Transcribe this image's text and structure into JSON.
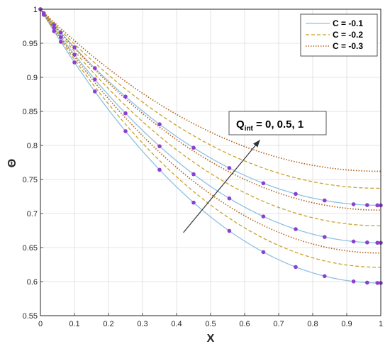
{
  "chart_data": {
    "type": "line",
    "xlabel": "X",
    "ylabel": "Θ",
    "xlim": [
      0,
      1
    ],
    "ylim": [
      0.55,
      1
    ],
    "xticks": [
      0,
      0.1,
      0.2,
      0.3,
      0.4,
      0.5,
      0.6,
      0.7,
      0.8,
      0.9,
      1
    ],
    "yticks": [
      0.55,
      0.6,
      0.65,
      0.7,
      0.75,
      0.8,
      0.85,
      0.9,
      0.95,
      1
    ],
    "xtick_labels": [
      "0",
      "0.1",
      "0.2",
      "0.3",
      "0.4",
      "0.5",
      "0.6",
      "0.7",
      "0.8",
      "0.9",
      "1"
    ],
    "ytick_labels": [
      "0.55",
      "0.6",
      "0.65",
      "0.7",
      "0.75",
      "0.8",
      "0.85",
      "0.9",
      "0.95",
      "1"
    ],
    "grid": true,
    "legend_position": "top-right",
    "legend": [
      {
        "label": "C = -0.1",
        "style": "solid",
        "color": "#8ec1e0"
      },
      {
        "label": "C = -0.2",
        "style": "dashed",
        "color": "#c9a227"
      },
      {
        "label": "C = -0.3",
        "style": "dotted",
        "color": "#b5651d"
      }
    ],
    "annotation": {
      "text_main": "Q",
      "text_sub": "int",
      "text_rest": " = 0, 0.5, 1",
      "arrow_from": [
        0.42,
        0.672
      ],
      "arrow_to": [
        0.645,
        0.808
      ]
    },
    "marker_color": "#8a3fd1",
    "marker_x": [
      0,
      0.01,
      0.04,
      0.06,
      0.1,
      0.16,
      0.25,
      0.35,
      0.45,
      0.555,
      0.655,
      0.75,
      0.835,
      0.92,
      0.96,
      0.99,
      1.0
    ],
    "series": [
      {
        "c": "-0.1",
        "q": "0",
        "style": "solid",
        "color": "#8ec1e0",
        "markers": true,
        "end": 0.598
      },
      {
        "c": "-0.1",
        "q": "0.5",
        "style": "solid",
        "color": "#8ec1e0",
        "markers": true,
        "end": 0.657
      },
      {
        "c": "-0.1",
        "q": "1",
        "style": "solid",
        "color": "#8ec1e0",
        "markers": true,
        "end": 0.712
      },
      {
        "c": "-0.2",
        "q": "0",
        "style": "dashed",
        "color": "#c9a227",
        "markers": false,
        "end": 0.621
      },
      {
        "c": "-0.2",
        "q": "0.5",
        "style": "dashed",
        "color": "#c9a227",
        "markers": false,
        "end": 0.682
      },
      {
        "c": "-0.2",
        "q": "1",
        "style": "dashed",
        "color": "#c9a227",
        "markers": false,
        "end": 0.737
      },
      {
        "c": "-0.3",
        "q": "0",
        "style": "dotted",
        "color": "#b5651d",
        "markers": false,
        "end": 0.642
      },
      {
        "c": "-0.3",
        "q": "0.5",
        "style": "dotted",
        "color": "#b5651d",
        "markers": false,
        "end": 0.705
      },
      {
        "c": "-0.3",
        "q": "1",
        "style": "dotted",
        "color": "#b5651d",
        "markers": false,
        "end": 0.762
      }
    ]
  }
}
